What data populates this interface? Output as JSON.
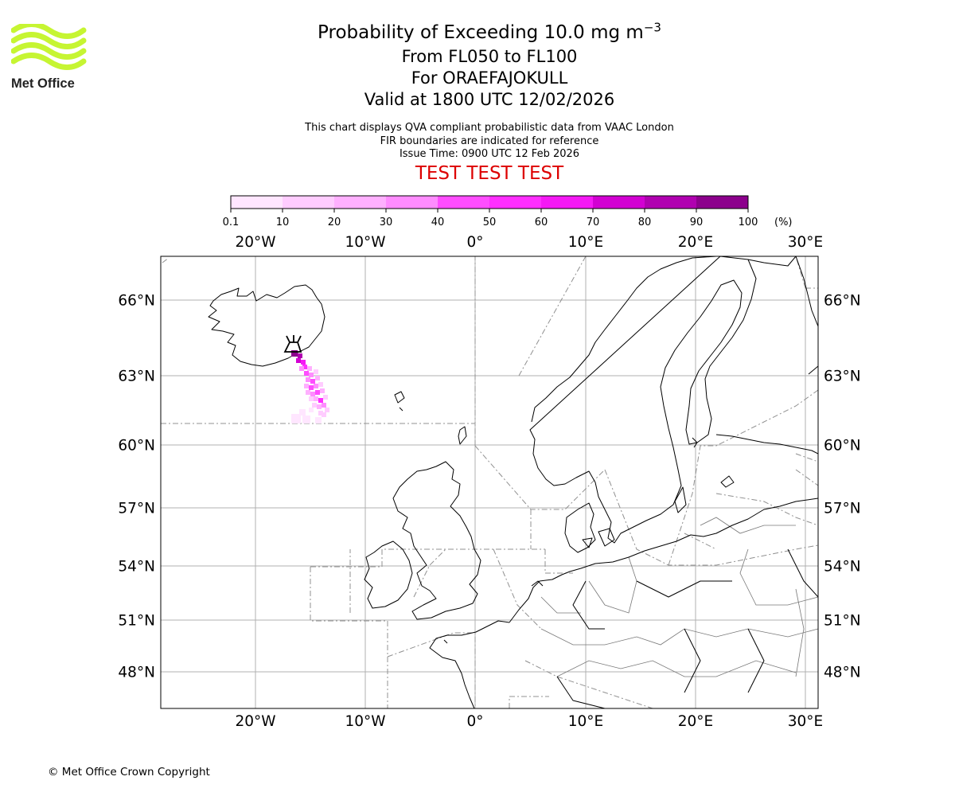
{
  "header": {
    "title_main": "Probability of Exceeding 10.0 mg m",
    "title_exponent": "−3",
    "flight_levels": "From FL050 to FL100",
    "volcano": "For ORAEFAJOKULL",
    "valid_time": "Valid at 1800 UTC 12/02/2026",
    "description": "This chart displays QVA compliant probabilistic data from VAAC London",
    "fir_note": "FIR boundaries are indicated for reference",
    "issue_time": "Issue Time: 0900 UTC 12 Feb 2026",
    "test_banner": "TEST TEST TEST"
  },
  "logo": {
    "text": "Met Office",
    "color": "#c6f532"
  },
  "colorbar": {
    "ticks": [
      "0.1",
      "10",
      "20",
      "30",
      "40",
      "50",
      "60",
      "70",
      "80",
      "90",
      "100"
    ],
    "unit": "(%)",
    "colors": [
      "#ffe6ff",
      "#ffccff",
      "#ffb0ff",
      "#ff8cff",
      "#ff4dff",
      "#ff2eff",
      "#f519f5",
      "#d200d2",
      "#b000b0",
      "#8c008c",
      "#640064"
    ]
  },
  "map": {
    "lon_labels": [
      "20°W",
      "10°W",
      "0°",
      "10°E",
      "20°E",
      "30°E"
    ],
    "lat_labels": [
      "66°N",
      "63°N",
      "60°N",
      "57°N",
      "54°N",
      "51°N",
      "48°N"
    ]
  },
  "footer": {
    "copyright": "© Met Office Crown Copyright"
  }
}
